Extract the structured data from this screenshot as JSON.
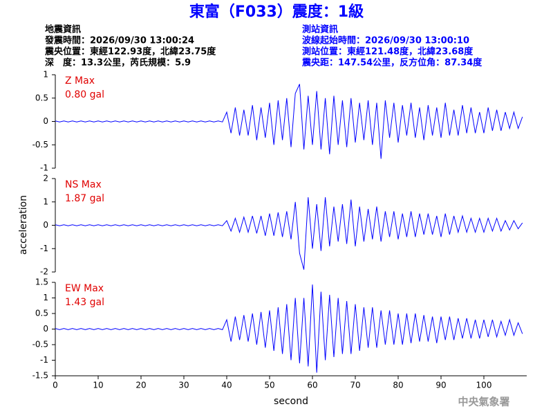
{
  "title": "東富（F033）震度：1級",
  "header": {
    "left": [
      "地震資訊",
      "發震時間：2026/09/30 13:00:24",
      "震央位置：東經122.93度，北緯23.75度",
      "深　度：13.3公里，芮氏規模：5.9"
    ],
    "right": [
      "測站資訊",
      "波線起始時間：2026/09/30 13:00:10",
      "測站位置：東經121.48度，北緯23.68度",
      "震央距：147.54公里，反方位角：87.34度"
    ]
  },
  "ylabel": "acceleration",
  "footer": "中央氣象署",
  "chart_data": [
    {
      "type": "line",
      "annotation": "Z Max",
      "max_label": "0.80 gal",
      "color": "#0000ff",
      "xlim": [
        0,
        110
      ],
      "ylim": [
        -1,
        1
      ],
      "yticks": [
        -1,
        -0.5,
        0,
        0.5,
        1
      ],
      "x": [
        0,
        1,
        2,
        3,
        4,
        5,
        6,
        7,
        8,
        9,
        10,
        11,
        12,
        13,
        14,
        15,
        16,
        17,
        18,
        19,
        20,
        21,
        22,
        23,
        24,
        25,
        26,
        27,
        28,
        29,
        30,
        31,
        32,
        33,
        34,
        35,
        36,
        37,
        38,
        39,
        40,
        41,
        42,
        43,
        44,
        45,
        46,
        47,
        48,
        49,
        50,
        51,
        52,
        53,
        54,
        55,
        56,
        57,
        58,
        59,
        60,
        61,
        62,
        63,
        64,
        65,
        66,
        67,
        68,
        69,
        70,
        71,
        72,
        73,
        74,
        75,
        76,
        77,
        78,
        79,
        80,
        81,
        82,
        83,
        84,
        85,
        86,
        87,
        88,
        89,
        90,
        91,
        92,
        93,
        94,
        95,
        96,
        97,
        98,
        99,
        100,
        101,
        102,
        103,
        104,
        105,
        106,
        107,
        108,
        109
      ],
      "values": [
        0.01,
        -0.01,
        0.01,
        -0.01,
        0.01,
        -0.01,
        0.01,
        -0.01,
        0.01,
        -0.01,
        0.01,
        -0.01,
        0.01,
        -0.01,
        0.01,
        -0.01,
        0.01,
        -0.01,
        0.01,
        -0.01,
        0.01,
        -0.01,
        0.01,
        -0.01,
        0.01,
        -0.01,
        0.01,
        -0.01,
        0.01,
        -0.01,
        0.01,
        -0.01,
        0.01,
        -0.01,
        0.01,
        -0.01,
        0.01,
        -0.01,
        0.01,
        -0.01,
        0.2,
        -0.25,
        0.3,
        -0.3,
        0.25,
        -0.3,
        0.35,
        -0.4,
        0.3,
        -0.35,
        0.4,
        -0.5,
        0.45,
        -0.4,
        0.5,
        -0.55,
        0.6,
        0.8,
        -0.6,
        0.55,
        -0.5,
        0.65,
        -0.6,
        0.5,
        -0.7,
        0.55,
        -0.5,
        0.45,
        -0.55,
        0.5,
        -0.45,
        0.4,
        -0.4,
        0.45,
        -0.5,
        0.4,
        -0.8,
        0.45,
        -0.35,
        0.4,
        -0.45,
        0.35,
        -0.3,
        0.4,
        -0.35,
        0.3,
        -0.4,
        0.35,
        -0.3,
        0.3,
        -0.35,
        0.4,
        -0.3,
        0.25,
        -0.3,
        0.35,
        -0.25,
        0.3,
        -0.25,
        0.2,
        -0.25,
        0.3,
        -0.2,
        0.25,
        -0.2,
        0.2,
        -0.15,
        0.2,
        -0.15,
        0.1
      ]
    },
    {
      "type": "line",
      "annotation": "NS Max",
      "max_label": "1.87 gal",
      "color": "#0000ff",
      "xlim": [
        0,
        110
      ],
      "ylim": [
        -2,
        2
      ],
      "yticks": [
        -2,
        -1,
        0,
        1,
        2
      ],
      "x": [
        0,
        1,
        2,
        3,
        4,
        5,
        6,
        7,
        8,
        9,
        10,
        11,
        12,
        13,
        14,
        15,
        16,
        17,
        18,
        19,
        20,
        21,
        22,
        23,
        24,
        25,
        26,
        27,
        28,
        29,
        30,
        31,
        32,
        33,
        34,
        35,
        36,
        37,
        38,
        39,
        40,
        41,
        42,
        43,
        44,
        45,
        46,
        47,
        48,
        49,
        50,
        51,
        52,
        53,
        54,
        55,
        56,
        57,
        58,
        59,
        60,
        61,
        62,
        63,
        64,
        65,
        66,
        67,
        68,
        69,
        70,
        71,
        72,
        73,
        74,
        75,
        76,
        77,
        78,
        79,
        80,
        81,
        82,
        83,
        84,
        85,
        86,
        87,
        88,
        89,
        90,
        91,
        92,
        93,
        94,
        95,
        96,
        97,
        98,
        99,
        100,
        101,
        102,
        103,
        104,
        105,
        106,
        107,
        108,
        109
      ],
      "values": [
        0.02,
        -0.02,
        0.02,
        -0.02,
        0.02,
        -0.02,
        0.02,
        -0.02,
        0.02,
        -0.02,
        0.02,
        -0.02,
        0.02,
        -0.02,
        0.02,
        -0.02,
        0.02,
        -0.02,
        0.02,
        -0.02,
        0.02,
        -0.02,
        0.02,
        -0.02,
        0.02,
        -0.02,
        0.02,
        -0.02,
        0.02,
        -0.02,
        0.02,
        -0.02,
        0.02,
        -0.02,
        0.02,
        -0.02,
        0.02,
        -0.02,
        0.02,
        -0.02,
        0.2,
        -0.25,
        0.3,
        -0.3,
        0.35,
        -0.3,
        0.4,
        -0.35,
        0.4,
        -0.45,
        0.5,
        -0.45,
        0.55,
        -0.5,
        0.6,
        -0.6,
        1.0,
        -1.2,
        -1.9,
        1.2,
        -1.0,
        0.9,
        -1.1,
        1.2,
        -0.9,
        0.8,
        -0.7,
        0.9,
        -0.8,
        1.1,
        -0.9,
        0.8,
        -0.7,
        0.7,
        -0.6,
        0.8,
        -0.7,
        0.6,
        -0.5,
        0.6,
        -0.6,
        0.5,
        -0.5,
        0.6,
        -0.5,
        0.5,
        -0.4,
        0.5,
        -0.4,
        0.4,
        -0.5,
        0.5,
        -0.4,
        0.4,
        -0.3,
        0.4,
        -0.3,
        0.3,
        -0.3,
        0.3,
        -0.3,
        0.3,
        -0.25,
        0.3,
        -0.25,
        0.2,
        -0.2,
        0.2,
        -0.15,
        0.1
      ]
    },
    {
      "type": "line",
      "annotation": "EW Max",
      "max_label": "1.43 gal",
      "color": "#0000ff",
      "xlim": [
        0,
        110
      ],
      "ylim": [
        -1.5,
        1.5
      ],
      "yticks": [
        -1.5,
        -1,
        -0.5,
        0,
        0.5,
        1,
        1.5
      ],
      "xticks": [
        0,
        10,
        20,
        30,
        40,
        50,
        60,
        70,
        80,
        90,
        100
      ],
      "xlabel": "second",
      "x": [
        0,
        1,
        2,
        3,
        4,
        5,
        6,
        7,
        8,
        9,
        10,
        11,
        12,
        13,
        14,
        15,
        16,
        17,
        18,
        19,
        20,
        21,
        22,
        23,
        24,
        25,
        26,
        27,
        28,
        29,
        30,
        31,
        32,
        33,
        34,
        35,
        36,
        37,
        38,
        39,
        40,
        41,
        42,
        43,
        44,
        45,
        46,
        47,
        48,
        49,
        50,
        51,
        52,
        53,
        54,
        55,
        56,
        57,
        58,
        59,
        60,
        61,
        62,
        63,
        64,
        65,
        66,
        67,
        68,
        69,
        70,
        71,
        72,
        73,
        74,
        75,
        76,
        77,
        78,
        79,
        80,
        81,
        82,
        83,
        84,
        85,
        86,
        87,
        88,
        89,
        90,
        91,
        92,
        93,
        94,
        95,
        96,
        97,
        98,
        99,
        100,
        101,
        102,
        103,
        104,
        105,
        106,
        107,
        108,
        109
      ],
      "values": [
        0.02,
        -0.02,
        0.02,
        -0.02,
        0.02,
        -0.02,
        0.02,
        -0.02,
        0.02,
        -0.02,
        0.02,
        -0.02,
        0.02,
        -0.02,
        0.02,
        -0.02,
        0.02,
        -0.02,
        0.02,
        -0.02,
        0.02,
        -0.02,
        0.02,
        -0.02,
        0.02,
        -0.02,
        0.02,
        -0.02,
        0.02,
        -0.02,
        0.02,
        -0.02,
        0.02,
        -0.02,
        0.02,
        -0.02,
        0.02,
        -0.02,
        0.02,
        -0.02,
        0.3,
        -0.4,
        0.4,
        -0.35,
        0.45,
        -0.4,
        0.5,
        -0.5,
        0.55,
        -0.6,
        0.6,
        -0.7,
        0.7,
        -0.8,
        0.8,
        -1.0,
        1.0,
        -1.1,
        1.0,
        -1.2,
        1.43,
        -1.4,
        1.2,
        -1.0,
        1.1,
        -0.9,
        1.0,
        -0.8,
        0.9,
        -0.8,
        0.8,
        -0.7,
        0.7,
        -0.6,
        0.7,
        -0.6,
        0.6,
        -0.5,
        0.6,
        -0.5,
        0.5,
        -0.5,
        0.5,
        -0.45,
        0.5,
        -0.4,
        0.45,
        -0.4,
        0.4,
        -0.45,
        0.4,
        -0.35,
        0.4,
        -0.35,
        0.35,
        -0.3,
        0.35,
        -0.3,
        0.3,
        -0.3,
        0.3,
        -0.25,
        0.3,
        -0.25,
        0.25,
        -0.2,
        0.3,
        -0.2,
        0.2,
        -0.15
      ]
    }
  ]
}
